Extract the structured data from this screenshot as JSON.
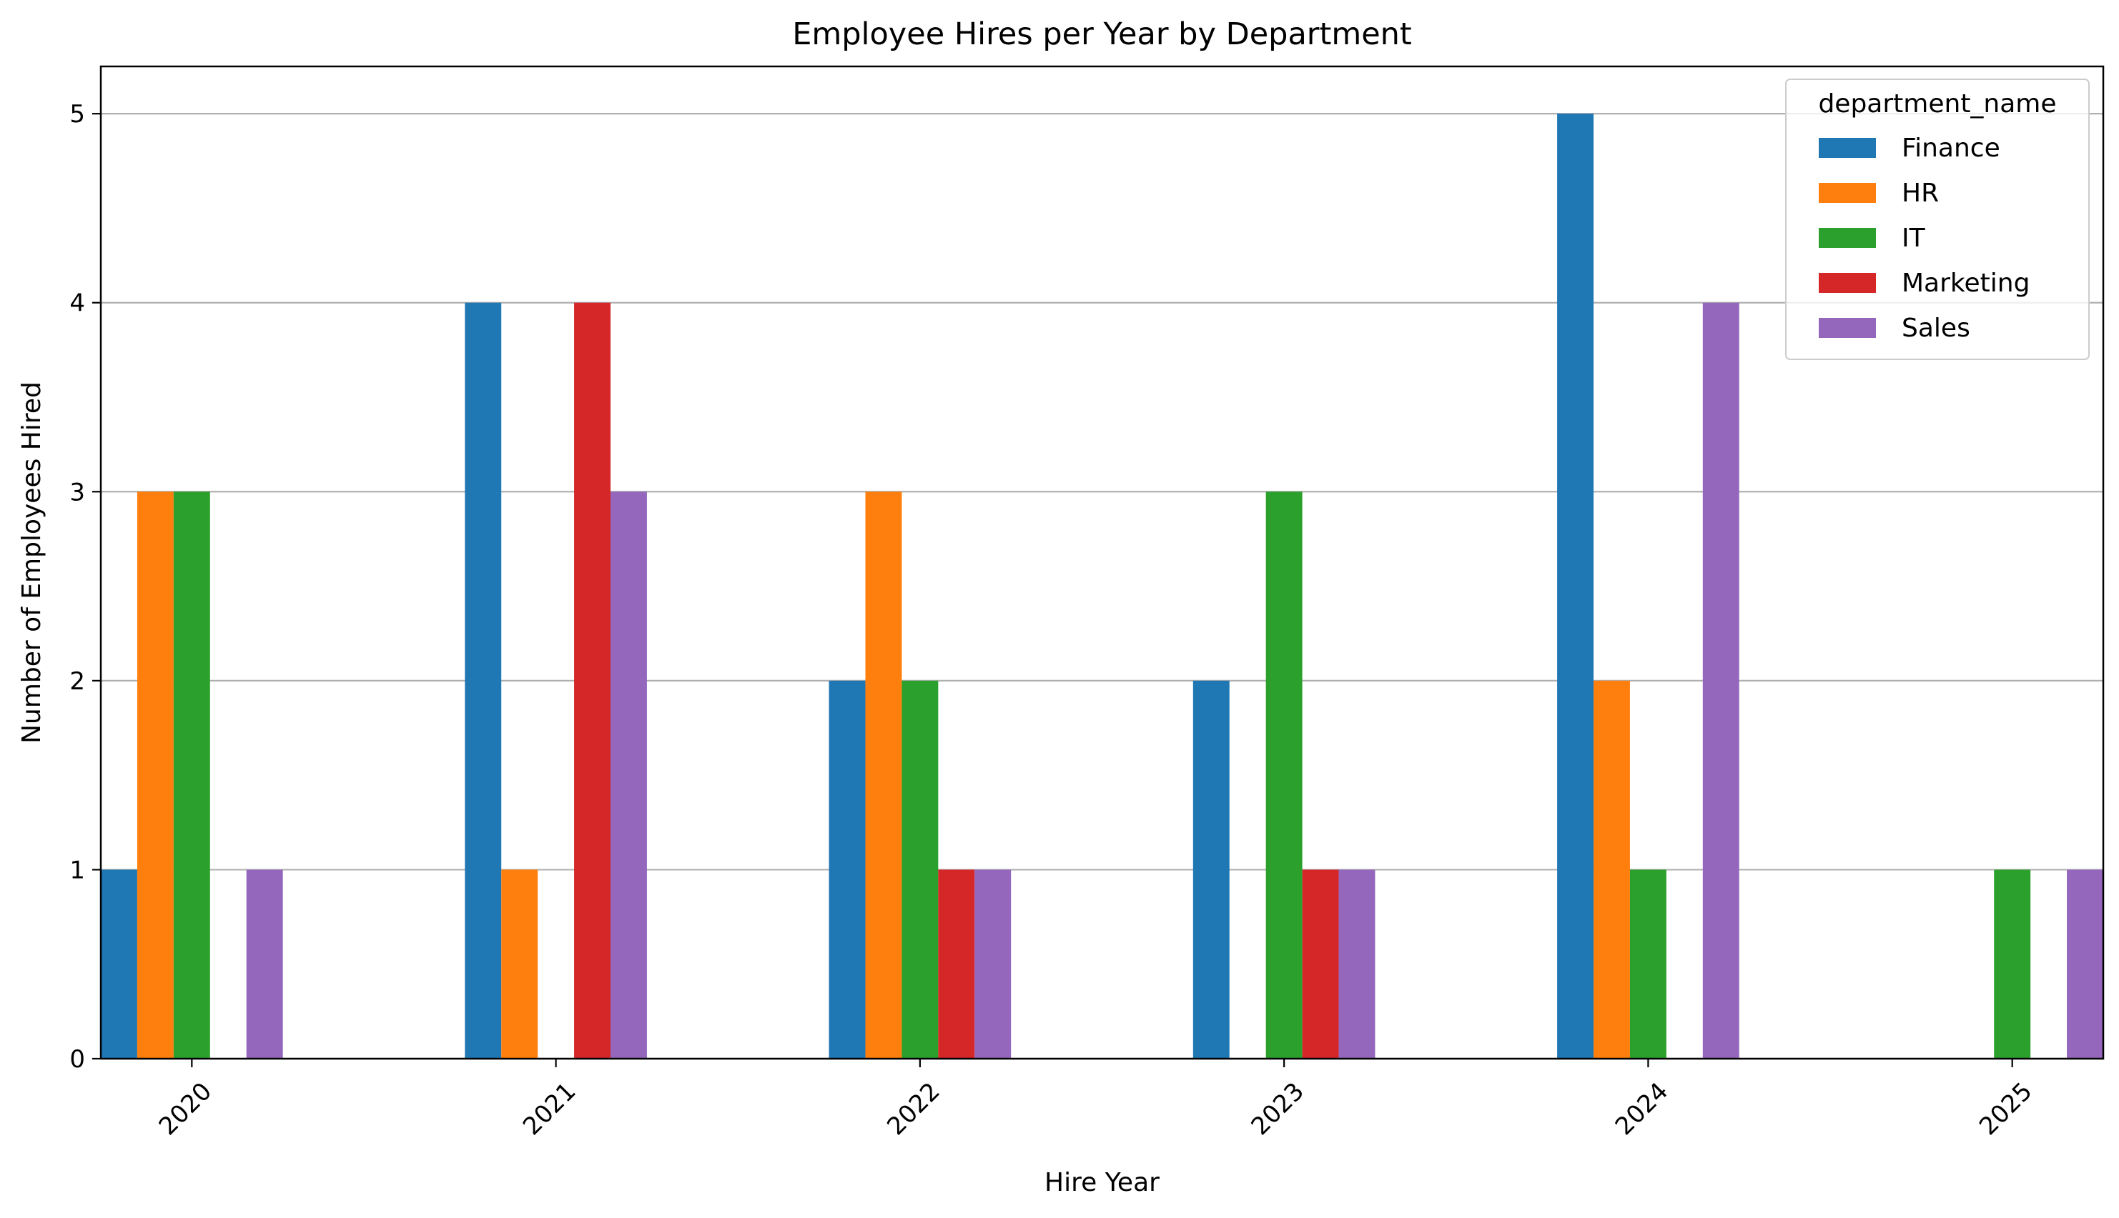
{
  "chart_data": {
    "type": "bar",
    "title": "Employee Hires per Year by Department",
    "xlabel": "Hire Year",
    "ylabel": "Number of Employees Hired",
    "categories": [
      "2020",
      "2021",
      "2022",
      "2023",
      "2024",
      "2025"
    ],
    "series": [
      {
        "name": "Finance",
        "color": "#1f77b4",
        "values": [
          1,
          4,
          2,
          2,
          5,
          0
        ]
      },
      {
        "name": "HR",
        "color": "#ff7f0e",
        "values": [
          3,
          1,
          3,
          0,
          2,
          0
        ]
      },
      {
        "name": "IT",
        "color": "#2ca02c",
        "values": [
          3,
          0,
          2,
          3,
          1,
          1
        ]
      },
      {
        "name": "Marketing",
        "color": "#d62728",
        "values": [
          0,
          4,
          1,
          1,
          0,
          0
        ]
      },
      {
        "name": "Sales",
        "color": "#9467bd",
        "values": [
          1,
          3,
          1,
          1,
          4,
          1
        ]
      }
    ],
    "ylim": [
      0,
      5.25
    ],
    "yticks": [
      "0",
      "1",
      "2",
      "3",
      "4",
      "5"
    ],
    "grid": "horizontal",
    "legend": {
      "title": "department_name",
      "position": "top-right"
    },
    "xtick_rotation": "45 degrees"
  }
}
